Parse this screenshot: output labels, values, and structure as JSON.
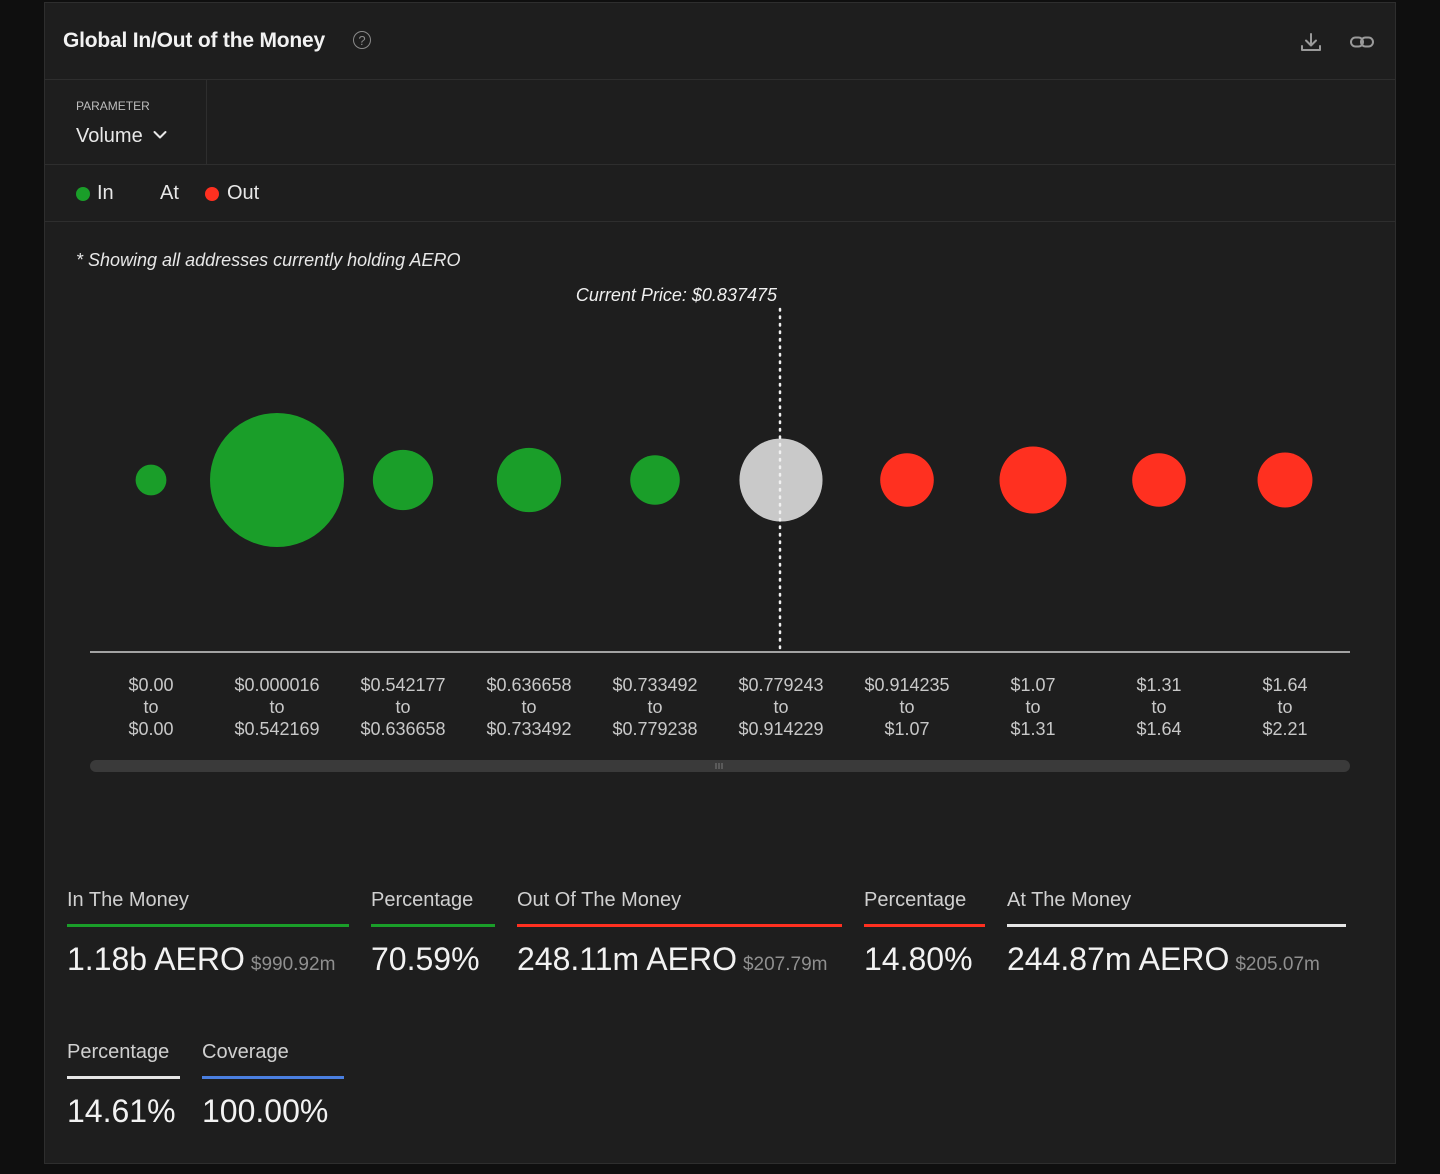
{
  "header": {
    "title": "Global In/Out of the Money",
    "help_glyph": "?"
  },
  "parameter": {
    "label": "PARAMETER",
    "value": "Volume"
  },
  "legend": {
    "in": "In",
    "at": "At",
    "out": "Out"
  },
  "note": "* Showing all addresses currently holding AERO",
  "colors": {
    "in": "#1a9e29",
    "at": "#c9c9c9",
    "out": "#ff3020",
    "coverage": "#4a7fe0",
    "white_line": "#e6e6e6"
  },
  "chart_data": {
    "type": "bubble",
    "current_price_label": "Current Price: $0.837475",
    "categories": [
      {
        "from": "$0.00",
        "to": "$0.00",
        "status": "in",
        "size": 0.23
      },
      {
        "from": "$0.000016",
        "to": "$0.542169",
        "status": "in",
        "size": 1.0
      },
      {
        "from": "$0.542177",
        "to": "$0.636658",
        "status": "in",
        "size": 0.45
      },
      {
        "from": "$0.636658",
        "to": "$0.733492",
        "status": "in",
        "size": 0.48
      },
      {
        "from": "$0.733492",
        "to": "$0.779238",
        "status": "in",
        "size": 0.37
      },
      {
        "from": "$0.779243",
        "to": "$0.914229",
        "status": "at",
        "size": 0.62
      },
      {
        "from": "$0.914235",
        "to": "$1.07",
        "status": "out",
        "size": 0.4
      },
      {
        "from": "$1.07",
        "to": "$1.31",
        "status": "out",
        "size": 0.5
      },
      {
        "from": "$1.31",
        "to": "$1.64",
        "status": "out",
        "size": 0.4
      },
      {
        "from": "$1.64",
        "to": "$2.21",
        "status": "out",
        "size": 0.41
      }
    ],
    "to_word": "to",
    "current_price_index": 5
  },
  "stats": {
    "in_money": {
      "label": "In The Money",
      "value": "1.18b AERO",
      "sub": "$990.92m"
    },
    "in_pct": {
      "label": "Percentage",
      "value": "70.59%"
    },
    "out_money": {
      "label": "Out Of The Money",
      "value": "248.11m AERO",
      "sub": "$207.79m"
    },
    "out_pct": {
      "label": "Percentage",
      "value": "14.80%"
    },
    "at_money": {
      "label": "At The Money",
      "value": "244.87m AERO",
      "sub": "$205.07m"
    },
    "at_pct": {
      "label": "Percentage",
      "value": "14.61%"
    },
    "coverage": {
      "label": "Coverage",
      "value": "100.00%"
    }
  }
}
